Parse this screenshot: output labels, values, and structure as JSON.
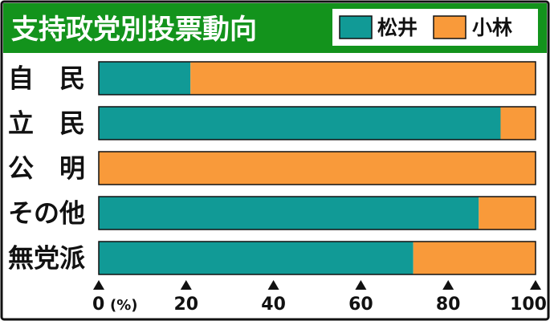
{
  "chart_data": {
    "type": "bar",
    "orientation": "horizontal",
    "stacked": true,
    "title": "支持政党別投票動向",
    "categories": [
      "自　民",
      "立　民",
      "公　明",
      "その他",
      "無党派"
    ],
    "series": [
      {
        "name": "松井",
        "color": "#119a96",
        "values": [
          21,
          92,
          0,
          87,
          72
        ]
      },
      {
        "name": "小林",
        "color": "#f99a3a",
        "values": [
          79,
          8,
          100,
          13,
          28
        ]
      }
    ],
    "x_ticks": [
      "0",
      "20",
      "40",
      "60",
      "80",
      "100"
    ],
    "x_tick_values": [
      0,
      20,
      40,
      60,
      80,
      100
    ],
    "x_unit": "(%)",
    "xlim": [
      0,
      100
    ],
    "legend_position": "top-right",
    "grid": false,
    "colors": {
      "title_bar": "#13931c",
      "border": "#111111"
    }
  }
}
